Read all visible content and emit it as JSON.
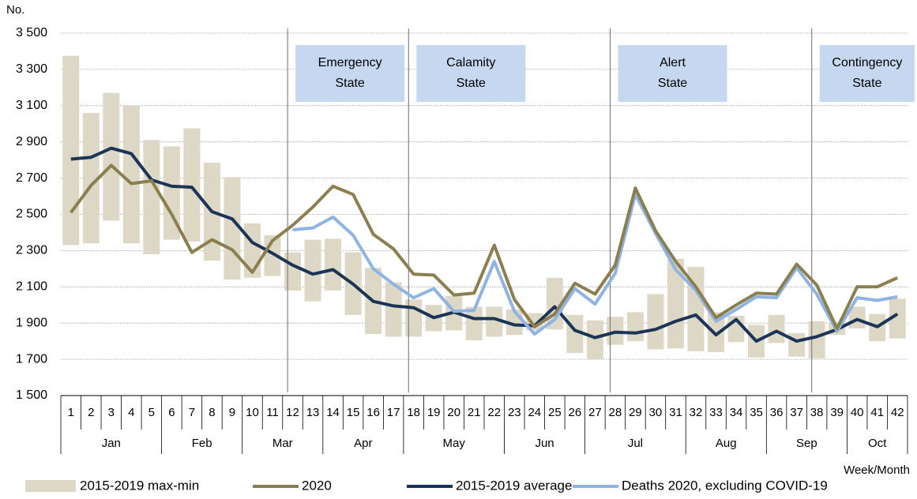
{
  "chart_data": {
    "type": "line",
    "y_axis_title": "No.",
    "x_axis_title": "Week/Month",
    "categories": [
      "1",
      "2",
      "3",
      "4",
      "5",
      "6",
      "7",
      "8",
      "9",
      "10",
      "11",
      "12",
      "13",
      "14",
      "15",
      "16",
      "17",
      "18",
      "19",
      "20",
      "21",
      "22",
      "23",
      "24",
      "25",
      "26",
      "27",
      "28",
      "29",
      "30",
      "31",
      "32",
      "33",
      "34",
      "35",
      "36",
      "37",
      "38",
      "39",
      "40",
      "41",
      "42"
    ],
    "months": [
      "Jan",
      "Feb",
      "Mar",
      "Apr",
      "May",
      "Jun",
      "Jul",
      "Aug",
      "Sep",
      "Oct"
    ],
    "ylim": [
      1500,
      3500
    ],
    "yticks": [
      {
        "value": 1500,
        "label": "1 500"
      },
      {
        "value": 1700,
        "label": "1 700"
      },
      {
        "value": 1900,
        "label": "1 900"
      },
      {
        "value": 2100,
        "label": "2 100"
      },
      {
        "value": 2300,
        "label": "2 300"
      },
      {
        "value": 2500,
        "label": "2 500"
      },
      {
        "value": 2700,
        "label": "2 700"
      },
      {
        "value": 2900,
        "label": "2 900"
      },
      {
        "value": 3100,
        "label": "3 100"
      },
      {
        "value": 3300,
        "label": "3 300"
      },
      {
        "value": 3500,
        "label": "3 500"
      }
    ],
    "grid": true,
    "range": {
      "name": "2015-2019 max-min",
      "color": "#ddd7c5",
      "low": [
        2330,
        2340,
        2465,
        2340,
        2280,
        2360,
        2350,
        2245,
        2140,
        2150,
        2160,
        2080,
        2020,
        2080,
        1945,
        1840,
        1825,
        1825,
        1855,
        1860,
        1805,
        1825,
        1835,
        1860,
        1865,
        1735,
        1700,
        1780,
        1800,
        1755,
        1760,
        1745,
        1740,
        1795,
        1710,
        1790,
        1715,
        1705,
        1835,
        1870,
        1800,
        1815
      ],
      "high": [
        3375,
        3060,
        3170,
        3100,
        2910,
        2875,
        2975,
        2785,
        2705,
        2450,
        2385,
        2290,
        2360,
        2365,
        2290,
        2205,
        2125,
        2030,
        2000,
        2050,
        1990,
        1990,
        1975,
        1955,
        2150,
        1945,
        1915,
        1935,
        1960,
        2060,
        2255,
        2210,
        1960,
        1940,
        1890,
        1945,
        1845,
        1910,
        1905,
        1990,
        1950,
        2035
      ]
    },
    "series": [
      {
        "name": "2020",
        "color": "#8b7f4f",
        "values": [
          2510,
          2660,
          2770,
          2670,
          2685,
          2500,
          2290,
          2360,
          2305,
          2180,
          2355,
          2440,
          2540,
          2655,
          2610,
          2390,
          2310,
          2170,
          2165,
          2055,
          2065,
          2330,
          2030,
          1880,
          1950,
          2120,
          2060,
          2220,
          2645,
          2410,
          2240,
          2100,
          1930,
          2000,
          2065,
          2060,
          2225,
          2110,
          1870,
          2100,
          2100,
          2150
        ]
      },
      {
        "name": "2015-2019 average",
        "color": "#1c3455",
        "values": [
          2805,
          2815,
          2865,
          2835,
          2690,
          2655,
          2650,
          2515,
          2475,
          2345,
          2285,
          2220,
          2170,
          2195,
          2115,
          2020,
          1995,
          1985,
          1930,
          1960,
          1925,
          1925,
          1890,
          1885,
          1990,
          1860,
          1820,
          1850,
          1845,
          1865,
          1910,
          1945,
          1835,
          1920,
          1800,
          1855,
          1800,
          1825,
          1865,
          1920,
          1880,
          1950
        ]
      },
      {
        "name": "Deaths 2020, excluding COVID-19",
        "color": "#8fb3e2",
        "values": [
          null,
          null,
          null,
          null,
          null,
          null,
          null,
          null,
          null,
          null,
          null,
          2415,
          2425,
          2485,
          2385,
          2200,
          2115,
          2040,
          2090,
          1965,
          1970,
          2240,
          1965,
          1840,
          1920,
          2090,
          2005,
          2175,
          2610,
          2395,
          2195,
          2080,
          1910,
          1975,
          2045,
          2040,
          2205,
          2060,
          1855,
          2040,
          2025,
          2045
        ]
      }
    ],
    "annotations": [
      {
        "x": 11.75,
        "lines": [
          "Emergency",
          "State"
        ]
      },
      {
        "x": 17.75,
        "lines": [
          "Calamity",
          "State"
        ]
      },
      {
        "x": 27.75,
        "lines": [
          "Alert",
          "State"
        ]
      },
      {
        "x": 37.75,
        "lines": [
          "Contingency",
          "State"
        ]
      }
    ]
  }
}
